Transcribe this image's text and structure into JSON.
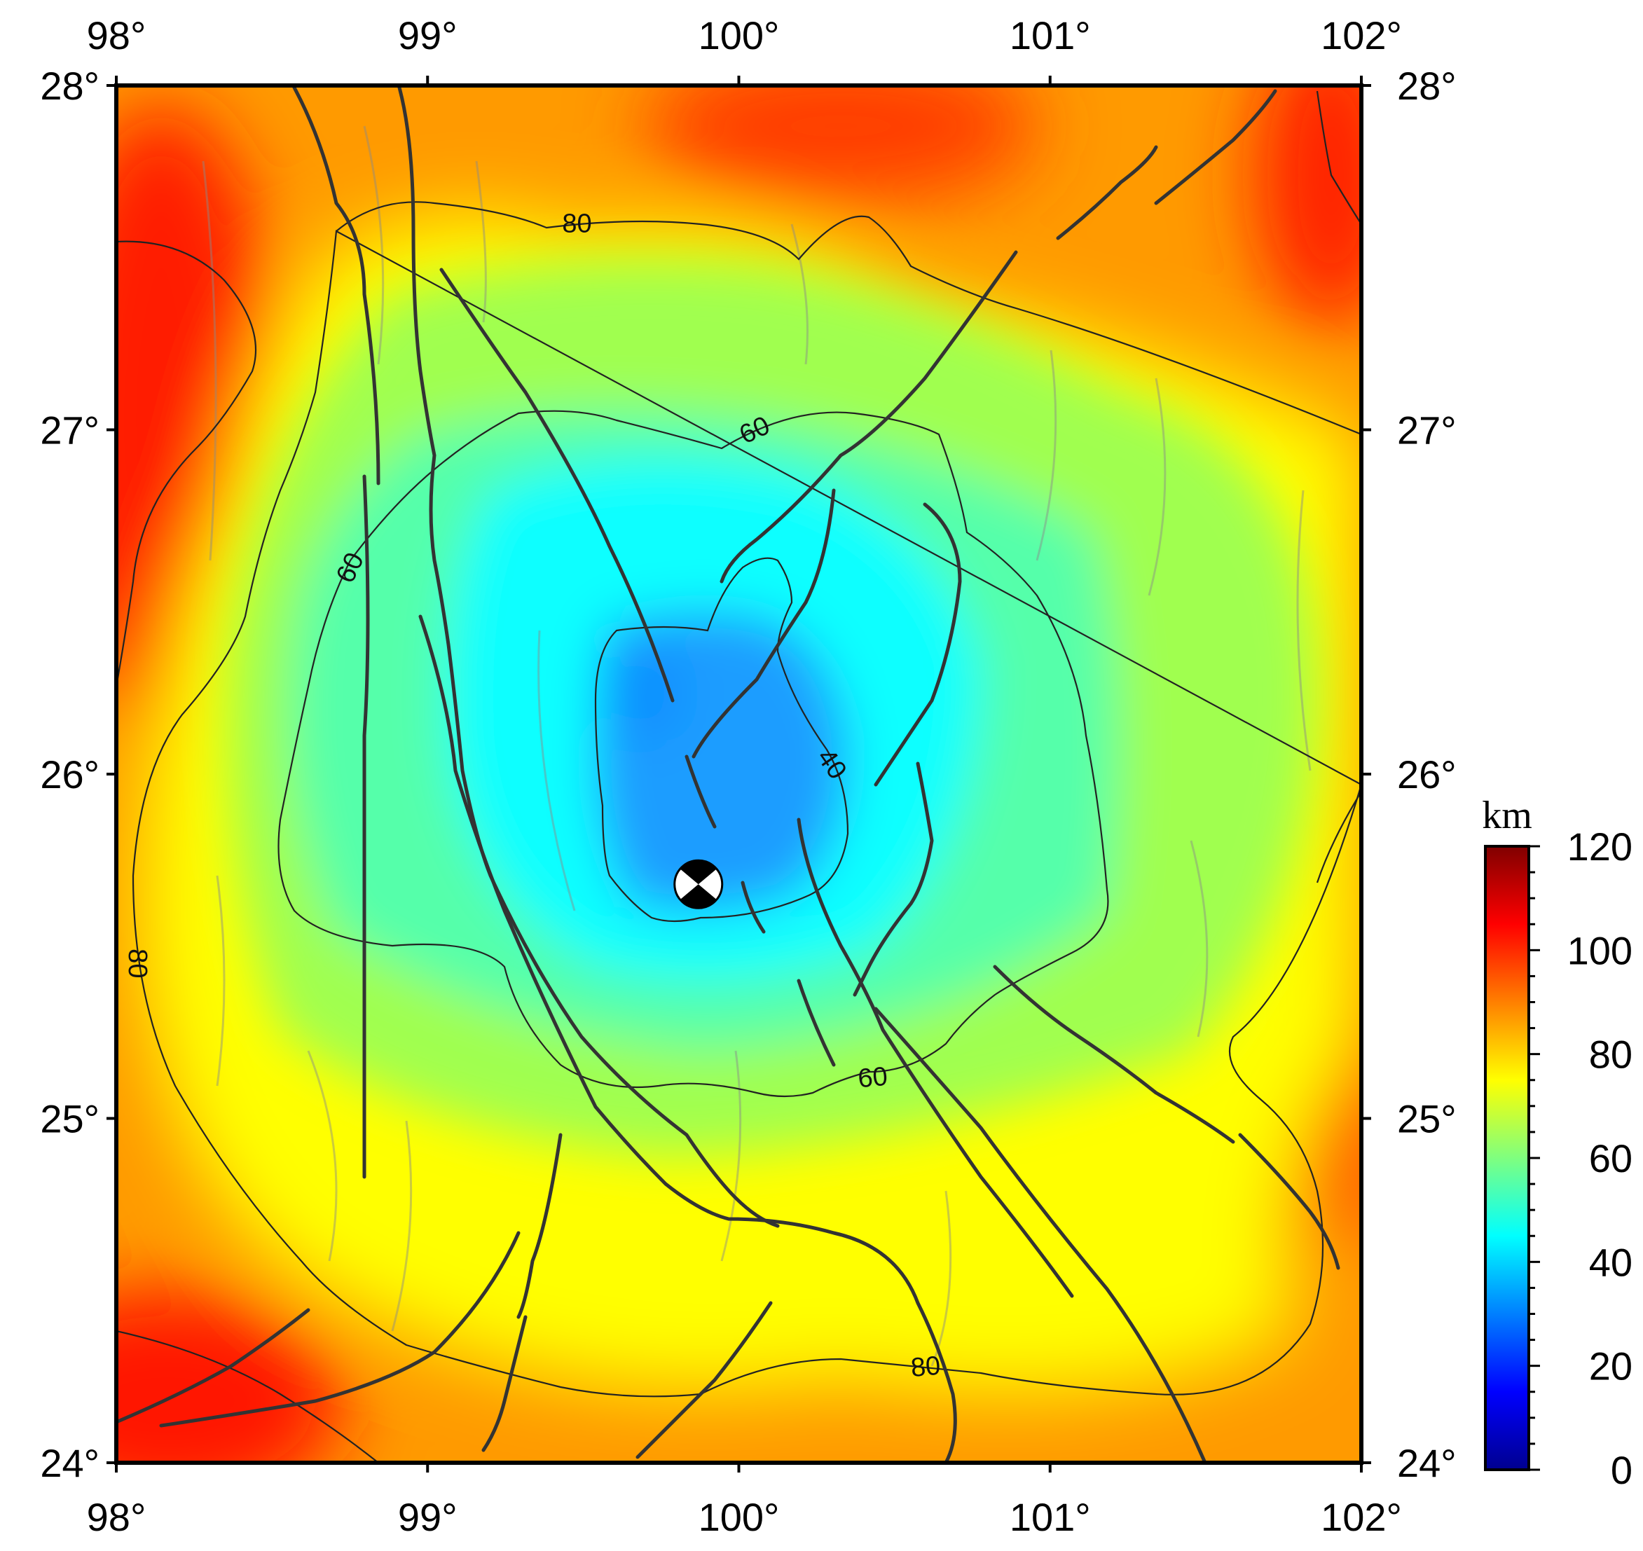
{
  "map": {
    "lon_ticks": [
      "98°",
      "99°",
      "100°",
      "101°",
      "102°"
    ],
    "lat_ticks": [
      "28°",
      "27°",
      "26°",
      "25°",
      "24°"
    ],
    "lon_range": [
      98,
      102
    ],
    "lat_range": [
      24,
      28
    ],
    "contour_labels": [
      {
        "text": "80",
        "lon": 99.48,
        "lat": 27.6,
        "angle": 0
      },
      {
        "text": "60",
        "lon": 100.05,
        "lat": 27.0,
        "angle": -25
      },
      {
        "text": "60",
        "lon": 98.75,
        "lat": 26.6,
        "angle": -65
      },
      {
        "text": "40",
        "lon": 100.3,
        "lat": 26.03,
        "angle": 55
      },
      {
        "text": "60",
        "lon": 100.43,
        "lat": 25.12,
        "angle": -5
      },
      {
        "text": "80",
        "lon": 98.07,
        "lat": 25.45,
        "angle": 90
      },
      {
        "text": "80",
        "lon": 100.6,
        "lat": 24.28,
        "angle": -5
      }
    ],
    "focal_mechanism": {
      "lon": 99.87,
      "lat": 25.68,
      "name": "beachball-icon"
    },
    "colormap": "jet"
  },
  "colorbar": {
    "unit": "km",
    "ticks": [
      "120",
      "100",
      "80",
      "60",
      "40",
      "20",
      "0"
    ],
    "range": [
      0,
      120
    ]
  }
}
